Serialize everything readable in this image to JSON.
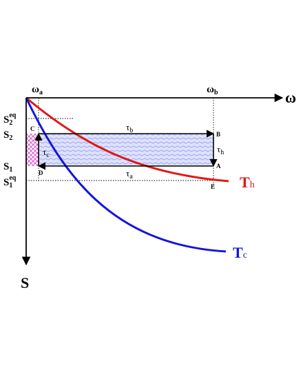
{
  "axes": {
    "omega_symbol": "ω",
    "s_symbol": "S"
  },
  "omega_ticks": [
    {
      "base": "ω",
      "sub": "a"
    },
    {
      "base": "ω",
      "sub": "b"
    }
  ],
  "s_ticks": [
    {
      "base": "S",
      "sub": "2",
      "sup": "eq"
    },
    {
      "base": "S",
      "sub": "2",
      "sup": ""
    },
    {
      "base": "S",
      "sub": "1",
      "sup": ""
    },
    {
      "base": "S",
      "sub": "1",
      "sup": "eq"
    }
  ],
  "points": {
    "A": "A",
    "B": "B",
    "C": "C",
    "D": "D",
    "E": "E"
  },
  "arrows": {
    "tau_b": {
      "base": "τ",
      "sub": "b"
    },
    "tau_a": {
      "base": "τ",
      "sub": "a"
    },
    "tau_h": {
      "base": "τ",
      "sub": "h"
    },
    "tau_c": {
      "base": "τ",
      "sub": "c"
    }
  },
  "curves": {
    "Th": {
      "base": "T",
      "sub": "h",
      "color": "#e01818"
    },
    "Tc": {
      "base": "T",
      "sub": "c",
      "color": "#1414e0"
    }
  },
  "colors": {
    "axis": "#000000",
    "region_fill": "#c8cff5",
    "crosshatch": "#e040c8"
  }
}
